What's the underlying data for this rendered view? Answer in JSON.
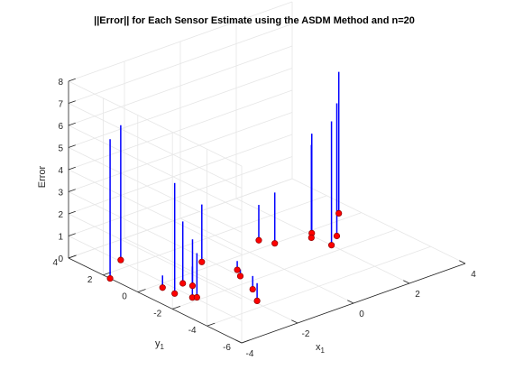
{
  "chart_data": {
    "type": "stem3",
    "title": "||Error|| for Each Sensor Estimate using the ASDM Method and n=20",
    "xlabel": "x",
    "xlabel_sub": "1",
    "ylabel": "y",
    "ylabel_sub": "1",
    "zlabel": "Error",
    "xlim": [
      -4,
      4
    ],
    "ylim": [
      -6,
      4
    ],
    "zlim": [
      0,
      8
    ],
    "xticks": [
      "-4",
      "-2",
      "0",
      "2",
      "4"
    ],
    "yticks": [
      "-6",
      "-4",
      "-2",
      "0",
      "2",
      "4"
    ],
    "zticks": [
      "0",
      "1",
      "2",
      "3",
      "4",
      "5",
      "6",
      "7",
      "8"
    ],
    "grid": true,
    "colors": {
      "stem": "#0000ff",
      "marker_face": "#ff0000",
      "marker_edge": "#990000",
      "box": "#262626",
      "grid": "#e6e6e6"
    },
    "points": [
      {
        "x": -4.0,
        "y": 1.6,
        "z": 6.3
      },
      {
        "x": -3.3,
        "y": -1.0,
        "z": 5.0
      },
      {
        "x": -3.3,
        "y": -0.3,
        "z": 0.55
      },
      {
        "x": -3.1,
        "y": -1.7,
        "z": 1.4
      },
      {
        "x": -3.0,
        "y": -1.8,
        "z": 2.0
      },
      {
        "x": -2.7,
        "y": -0.5,
        "z": 2.8
      },
      {
        "x": -2.6,
        "y": -0.9,
        "z": 2.1
      },
      {
        "x": -3.0,
        "y": 2.6,
        "z": 6.1
      },
      {
        "x": -1.4,
        "y": 0.5,
        "z": 2.6
      },
      {
        "x": -1.9,
        "y": -3.5,
        "z": 0.8
      },
      {
        "x": -1.5,
        "y": -2.6,
        "z": 0.6
      },
      {
        "x": -1.2,
        "y": -1.4,
        "z": 0.3
      },
      {
        "x": -1.0,
        "y": -0.9,
        "z": 0.4
      },
      {
        "x": 0.7,
        "y": 0.6,
        "z": 1.6
      },
      {
        "x": 0.9,
        "y": 0.0,
        "z": 2.3
      },
      {
        "x": 1.9,
        "y": -0.5,
        "z": 4.2
      },
      {
        "x": 2.1,
        "y": -0.2,
        "z": 4.5
      },
      {
        "x": 2.0,
        "y": -1.5,
        "z": 5.6
      },
      {
        "x": 2.5,
        "y": -1.0,
        "z": 6.0
      },
      {
        "x": 3.5,
        "y": 0.5,
        "z": 6.4
      }
    ]
  }
}
